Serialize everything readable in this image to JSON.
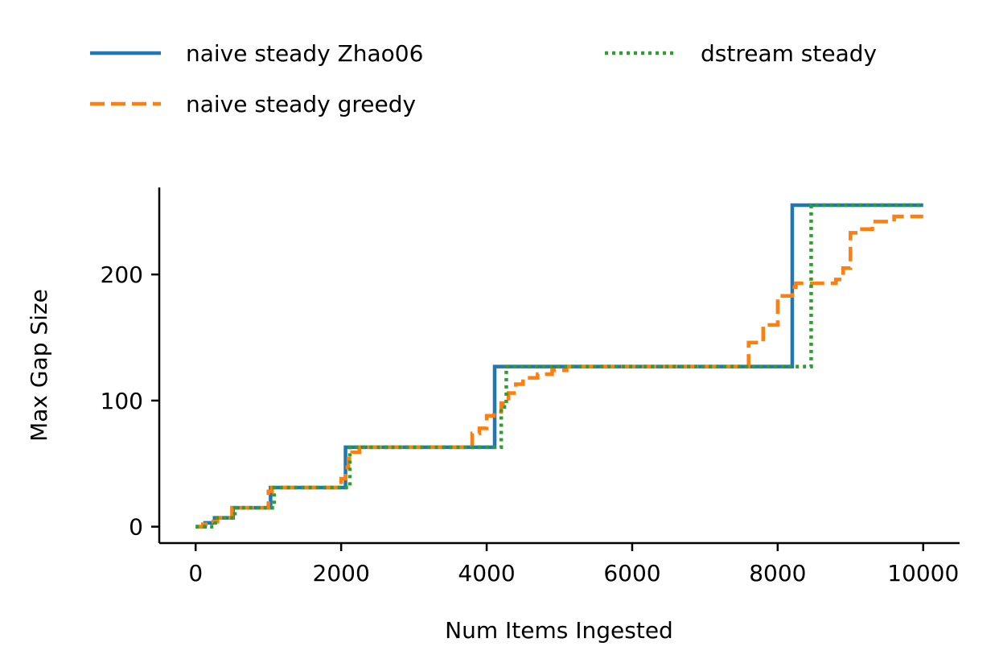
{
  "chart_data": {
    "type": "line",
    "title": "",
    "xlabel": "Num Items Ingested",
    "ylabel": "Max Gap Size",
    "xlim": [
      -500,
      10500
    ],
    "ylim": [
      -13,
      269
    ],
    "xticks": [
      0,
      2000,
      4000,
      6000,
      8000,
      10000
    ],
    "xtick_labels": [
      "0",
      "2000",
      "4000",
      "6000",
      "8000",
      "10000"
    ],
    "yticks": [
      0,
      100,
      200
    ],
    "ytick_labels": [
      "0",
      "100",
      "200"
    ],
    "grid": false,
    "legend": {
      "placement": "top",
      "columns": 2
    },
    "series": [
      {
        "name": "naive steady Zhao06",
        "color": "#1f77b4",
        "style": "solid",
        "x": [
          0,
          130,
          130,
          260,
          260,
          515,
          515,
          1030,
          1030,
          2060,
          2060,
          4110,
          4110,
          8200,
          8200,
          10000
        ],
        "y": [
          0,
          0,
          3,
          3,
          7,
          7,
          15,
          15,
          31,
          31,
          63,
          63,
          127,
          127,
          255,
          255
        ]
      },
      {
        "name": "naive steady greedy",
        "color": "#ff7f0e",
        "style": "dashed",
        "x": [
          0,
          100,
          100,
          200,
          200,
          300,
          300,
          500,
          500,
          1000,
          1000,
          1050,
          1050,
          2000,
          2000,
          2060,
          2060,
          2100,
          2100,
          2150,
          2150,
          2250,
          2250,
          3800,
          3800,
          3900,
          3900,
          4000,
          4000,
          4100,
          4100,
          4200,
          4200,
          4300,
          4300,
          4400,
          4400,
          4500,
          4500,
          4700,
          4700,
          4900,
          4900,
          5100,
          5100,
          7600,
          7600,
          7800,
          7800,
          8000,
          8000,
          8200,
          8200,
          8250,
          8250,
          8800,
          8800,
          8900,
          8900,
          9000,
          9000,
          9100,
          9100,
          9300,
          9300,
          9600,
          9600,
          10000
        ],
        "y": [
          0,
          0,
          2,
          2,
          4,
          4,
          7,
          7,
          15,
          15,
          28,
          28,
          31,
          31,
          38,
          38,
          47,
          47,
          54,
          54,
          59,
          59,
          63,
          63,
          74,
          74,
          78,
          78,
          88,
          88,
          91,
          91,
          98,
          98,
          106,
          106,
          113,
          113,
          118,
          118,
          121,
          121,
          124,
          124,
          127,
          127,
          146,
          146,
          160,
          160,
          183,
          183,
          190,
          190,
          193,
          193,
          196,
          196,
          205,
          205,
          233,
          233,
          236,
          236,
          242,
          242,
          246,
          246
        ]
      },
      {
        "name": "dstream steady",
        "color": "#2ca02c",
        "style": "dotted",
        "x": [
          0,
          270,
          270,
          540,
          540,
          1080,
          1080,
          2120,
          2120,
          4200,
          4200,
          4270,
          4270,
          8340,
          8340,
          8460,
          8460,
          10000
        ],
        "y": [
          0,
          0,
          7,
          7,
          15,
          15,
          31,
          31,
          63,
          63,
          95,
          95,
          127,
          127,
          127,
          127,
          255,
          255
        ]
      }
    ]
  }
}
